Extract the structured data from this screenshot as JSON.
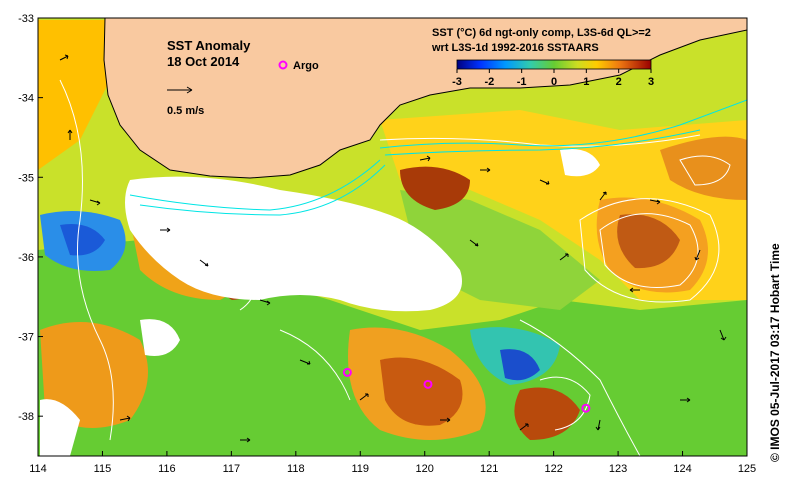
{
  "map": {
    "title": "SST Anomaly",
    "date": "18 Oct 2014",
    "argo_label": "Argo",
    "speed_label": "0.5 m/s",
    "colorbar_title_1": "SST (°C) 6d ngt-only comp, L3S-6d QL>=2",
    "colorbar_title_2": "wrt L3S-1d 1992-2016 SSTAARS",
    "colorbar_ticks": [
      "-3",
      "-2",
      "-1",
      "0",
      "1",
      "2",
      "3"
    ],
    "colorbar_range": [
      -3,
      3
    ],
    "credit": "© IMOS 05-Jul-2017 03:17 Hobart Time",
    "lon_ticks": [
      "114",
      "115",
      "116",
      "117",
      "118",
      "119",
      "120",
      "121",
      "122",
      "123",
      "124",
      "125"
    ],
    "lat_ticks": [
      "-33",
      "-34",
      "-35",
      "-36",
      "-37",
      "-38"
    ],
    "lon_range": [
      114,
      125
    ],
    "lat_range": [
      -38.5,
      -33
    ],
    "argo_floats": [
      {
        "lon": 118.8,
        "lat": -37.45
      },
      {
        "lon": 120.05,
        "lat": -37.6
      },
      {
        "lon": 122.5,
        "lat": -37.9
      }
    ],
    "colors": {
      "land": "#f9c9a0",
      "argo": "#ff00ff",
      "contour": "#ffffff",
      "current": "#00e5e5"
    }
  }
}
